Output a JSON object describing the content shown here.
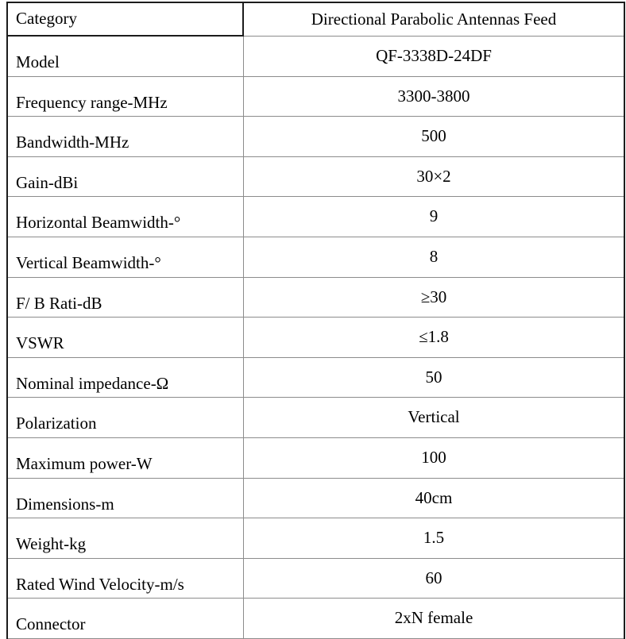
{
  "table": {
    "header": {
      "label": "Category",
      "value": "Directional Parabolic Antennas Feed"
    },
    "rows": [
      {
        "label": "Model",
        "value": "QF-3338D-24DF"
      },
      {
        "label": "Frequency range-MHz",
        "value": "3300-3800"
      },
      {
        "label": "Bandwidth-MHz",
        "value": "500"
      },
      {
        "label": "Gain-dBi",
        "value": "30×2"
      },
      {
        "label": "Horizontal Beamwidth-°",
        "value": "9"
      },
      {
        "label": "Vertical Beamwidth-°",
        "value": "8"
      },
      {
        "label": "F/ B Rati-dB",
        "value": "≥30"
      },
      {
        "label": "VSWR",
        "value": "≤1.8"
      },
      {
        "label": "Nominal impedance-Ω",
        "value": "50"
      },
      {
        "label": "Polarization",
        "value": "Vertical"
      },
      {
        "label": "Maximum power-W",
        "value": "100"
      },
      {
        "label": "Dimensions-m",
        "value": "40cm"
      },
      {
        "label": "Weight-kg",
        "value": "1.5"
      },
      {
        "label": "Rated Wind Velocity-m/s",
        "value": "60"
      },
      {
        "label": "Connector",
        "value": "2xN female"
      }
    ],
    "colors": {
      "outer_border": "#1c1c1c",
      "grid_line": "#8c8c8c"
    }
  }
}
